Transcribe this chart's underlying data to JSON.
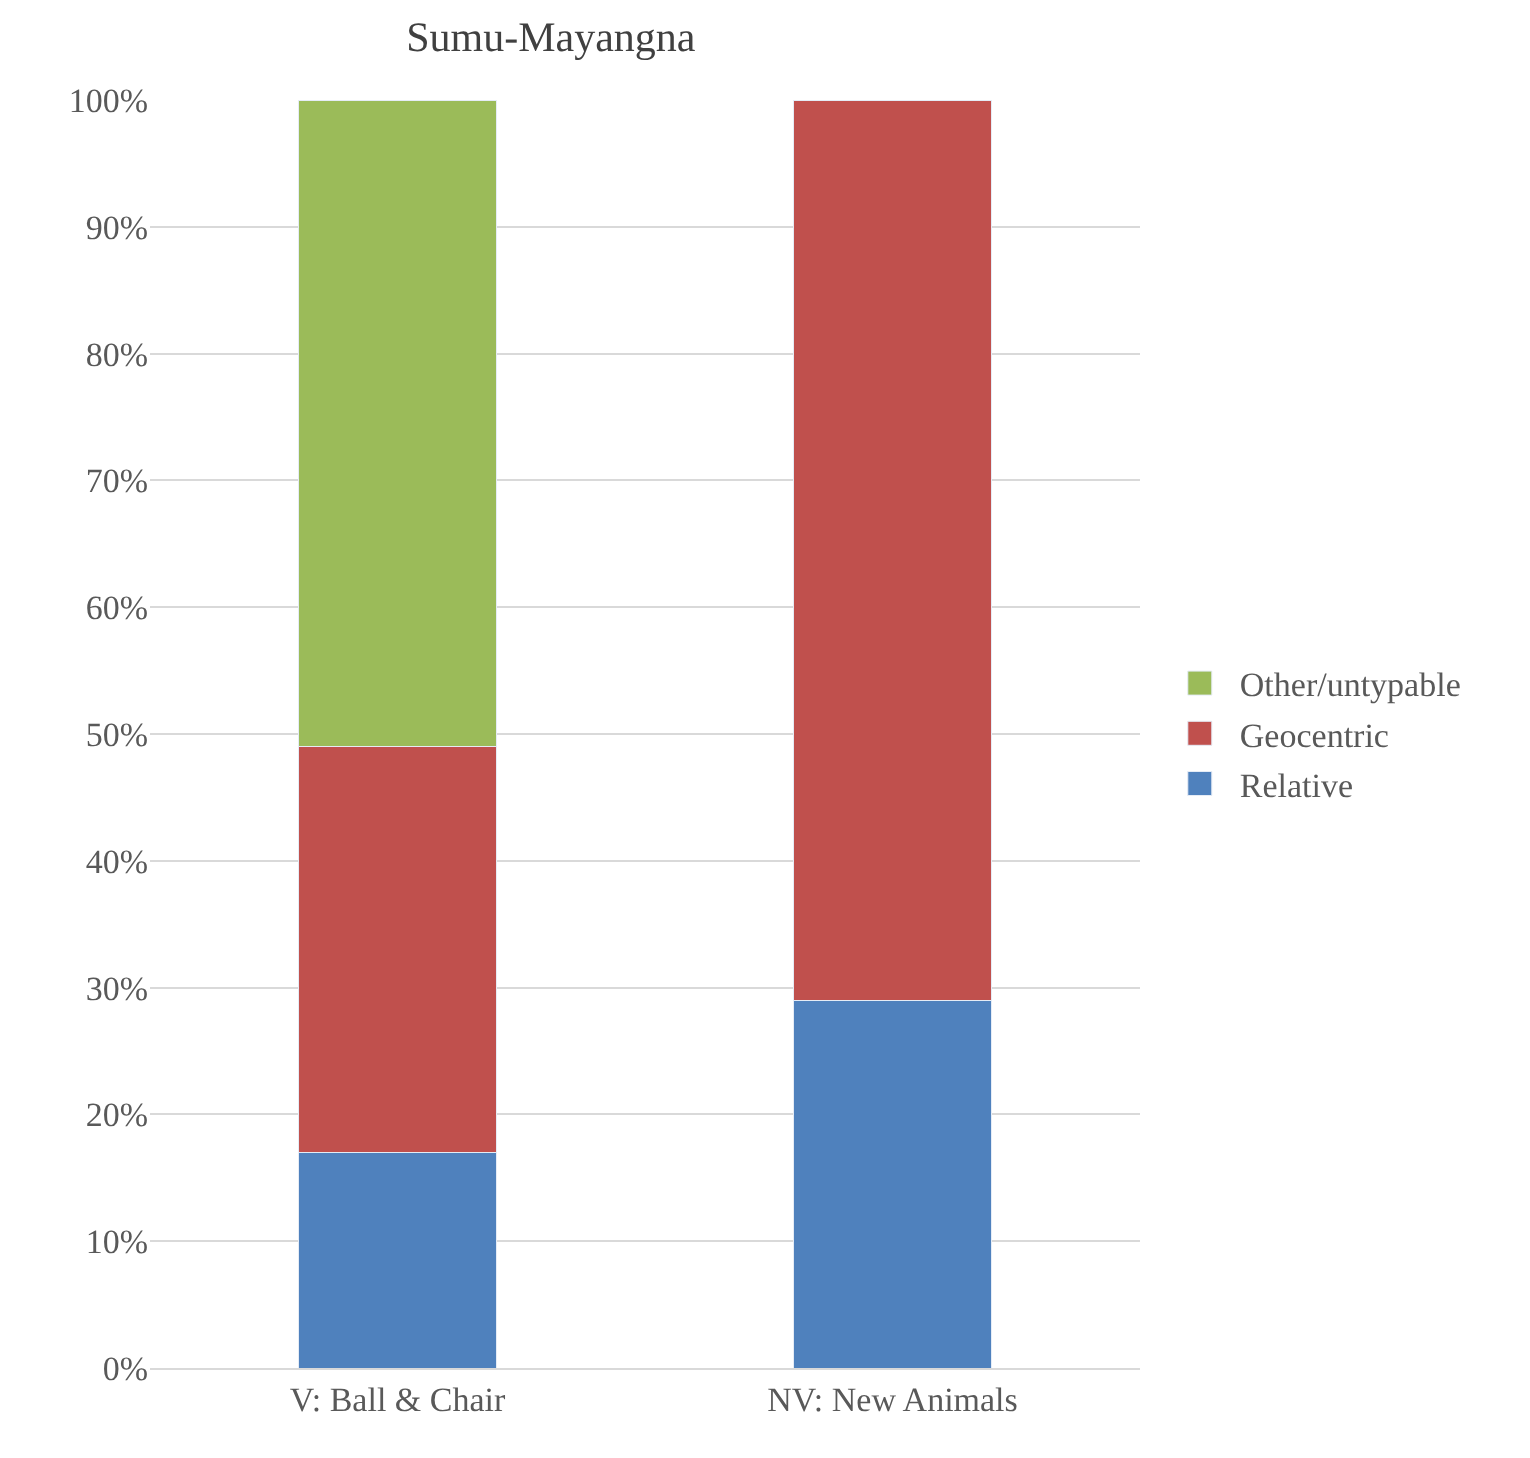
{
  "chart_data": {
    "type": "bar",
    "title": "Sumu-Mayangna",
    "stacked": true,
    "categories": [
      "V: Ball & Chair",
      "NV: New Animals"
    ],
    "series": [
      {
        "name": "Relative",
        "color": "#4f81bd",
        "values": [
          17,
          29
        ]
      },
      {
        "name": "Geocentric",
        "color": "#c0504d",
        "values": [
          32,
          71
        ]
      },
      {
        "name": "Other/untypable",
        "color": "#9bbb59",
        "values": [
          51,
          null
        ]
      }
    ],
    "ylim": [
      0,
      100
    ],
    "yticks": [
      {
        "value": 0,
        "label": "0%"
      },
      {
        "value": 10,
        "label": "10%"
      },
      {
        "value": 20,
        "label": "20%"
      },
      {
        "value": 30,
        "label": "30%"
      },
      {
        "value": 40,
        "label": "40%"
      },
      {
        "value": 50,
        "label": "50%"
      },
      {
        "value": 60,
        "label": "60%"
      },
      {
        "value": 70,
        "label": "70%"
      },
      {
        "value": 80,
        "label": "80%"
      },
      {
        "value": 90,
        "label": "90%"
      },
      {
        "value": 100,
        "label": "100%"
      }
    ],
    "grid": "y",
    "legend": "right"
  }
}
